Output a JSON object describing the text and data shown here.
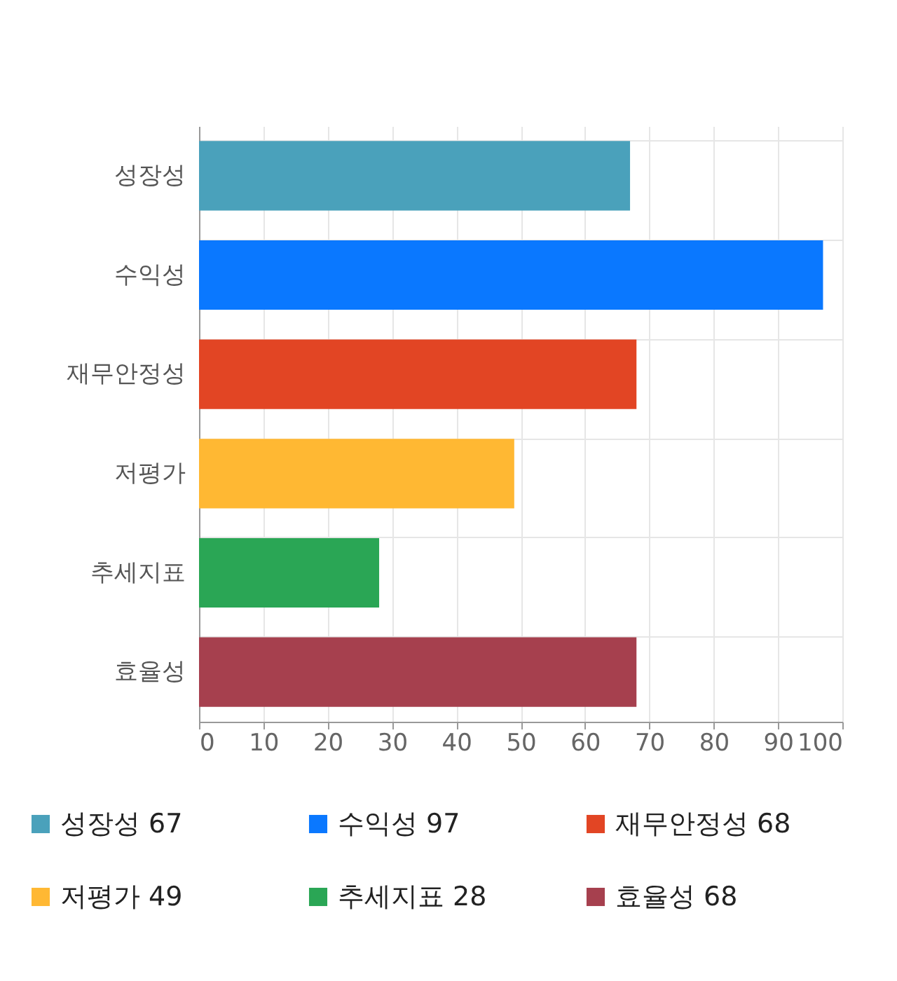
{
  "chart_data": {
    "type": "bar",
    "orientation": "horizontal",
    "categories": [
      "성장성",
      "수익성",
      "재무안정성",
      "저평가",
      "추세지표",
      "효율성"
    ],
    "series": [
      {
        "name": "성장성 67",
        "color": "#4aa1bb",
        "values": [
          67,
          null,
          null,
          null,
          null,
          null
        ]
      },
      {
        "name": "수익성 97",
        "color": "#0a78ff",
        "values": [
          null,
          97,
          null,
          null,
          null,
          null
        ]
      },
      {
        "name": "재무안정성 68",
        "color": "#e24524",
        "values": [
          null,
          null,
          68,
          null,
          null,
          null
        ]
      },
      {
        "name": "저평가 49",
        "color": "#ffb833",
        "values": [
          null,
          null,
          null,
          49,
          null,
          null
        ]
      },
      {
        "name": "추세지표 28",
        "color": "#2aa655",
        "values": [
          null,
          null,
          null,
          null,
          28,
          null
        ]
      },
      {
        "name": "효율성 68",
        "color": "#a6404e",
        "values": [
          null,
          null,
          null,
          null,
          null,
          68
        ]
      }
    ],
    "xlim": [
      0,
      100
    ],
    "xticks": [
      0,
      10,
      20,
      30,
      40,
      50,
      60,
      70,
      80,
      90,
      100
    ],
    "grid": true,
    "legend": "bottom"
  }
}
